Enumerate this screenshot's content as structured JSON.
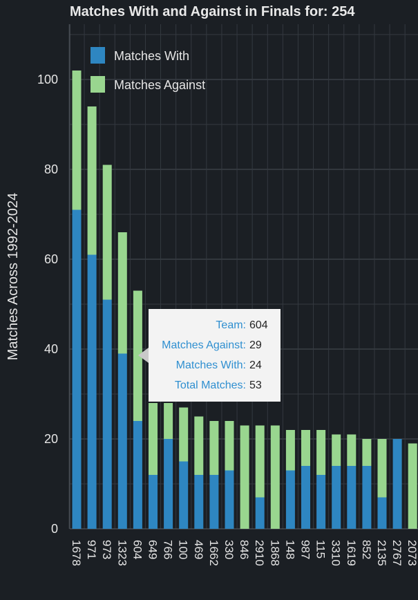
{
  "chart_data": {
    "type": "bar",
    "stacked": true,
    "title": "Matches With and Against in Finals for: 254",
    "ylabel": "Matches Across 1992-2024",
    "xlabel": "",
    "ylim": [
      0,
      110
    ],
    "yticks": [
      0,
      20,
      40,
      60,
      80,
      100
    ],
    "grid": true,
    "legend_position": "top-left",
    "categories": [
      "1678",
      "971",
      "973",
      "1323",
      "604",
      "649",
      "766",
      "100",
      "469",
      "1662",
      "330",
      "846",
      "2910",
      "1868",
      "148",
      "987",
      "115",
      "3310",
      "1619",
      "852",
      "2135",
      "2767",
      "2073"
    ],
    "series": [
      {
        "name": "Matches With",
        "color": "#2e86c1",
        "values": [
          71,
          61,
          51,
          39,
          24,
          12,
          20,
          15,
          12,
          12,
          13,
          0,
          7,
          0,
          13,
          14,
          12,
          14,
          14,
          14,
          7,
          20,
          0
        ]
      },
      {
        "name": "Matches Against",
        "color": "#99d68f",
        "values": [
          31,
          33,
          30,
          27,
          29,
          16,
          8,
          12,
          13,
          12,
          11,
          23,
          16,
          23,
          9,
          8,
          10,
          7,
          7,
          6,
          13,
          0,
          19
        ]
      }
    ],
    "tooltip": {
      "rows": [
        {
          "key": "Team:",
          "value": "604"
        },
        {
          "key": "Matches Against:",
          "value": "29"
        },
        {
          "key": "Matches With:",
          "value": "24"
        },
        {
          "key": "Total Matches:",
          "value": "53"
        }
      ]
    }
  }
}
